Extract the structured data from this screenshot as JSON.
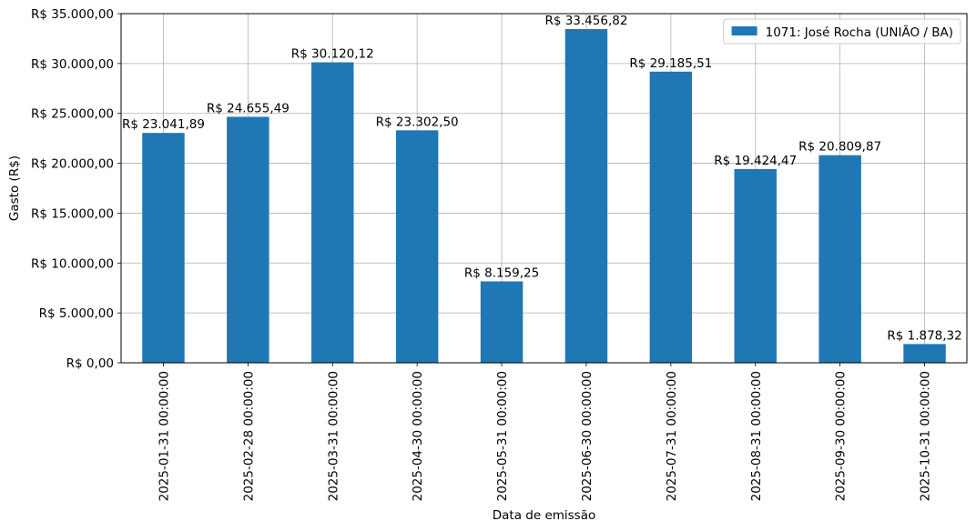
{
  "chart_data": {
    "type": "bar",
    "categories": [
      "2025-01-31 00:00:00",
      "2025-02-28 00:00:00",
      "2025-03-31 00:00:00",
      "2025-04-30 00:00:00",
      "2025-05-31 00:00:00",
      "2025-06-30 00:00:00",
      "2025-07-31 00:00:00",
      "2025-08-31 00:00:00",
      "2025-09-30 00:00:00",
      "2025-10-31 00:00:00"
    ],
    "series": [
      {
        "name": "1071: José Rocha (UNIÃO / BA)",
        "color": "#1f77b4",
        "values": [
          23041.89,
          24655.49,
          30120.12,
          23302.5,
          8159.25,
          33456.82,
          29185.51,
          19424.47,
          20809.87,
          1878.32
        ],
        "labels": [
          "R$ 23.041,89",
          "R$ 24.655,49",
          "R$ 30.120,12",
          "R$ 23.302,50",
          "R$ 8.159,25",
          "R$ 33.456,82",
          "R$ 29.185,51",
          "R$ 19.424,47",
          "R$ 20.809,87",
          "R$ 1.878,32"
        ]
      }
    ],
    "yticks": [
      0,
      5000,
      10000,
      15000,
      20000,
      25000,
      30000,
      35000
    ],
    "ytick_labels": [
      "R$ 0,00",
      "R$ 5.000,00",
      "R$ 10.000,00",
      "R$ 15.000,00",
      "R$ 20.000,00",
      "R$ 25.000,00",
      "R$ 30.000,00",
      "R$ 35.000,00"
    ],
    "ylim": [
      0,
      35000
    ],
    "xlabel": "Data de emissão",
    "ylabel": "Gasto (R$)",
    "grid": true,
    "legend_position": "top-right"
  }
}
